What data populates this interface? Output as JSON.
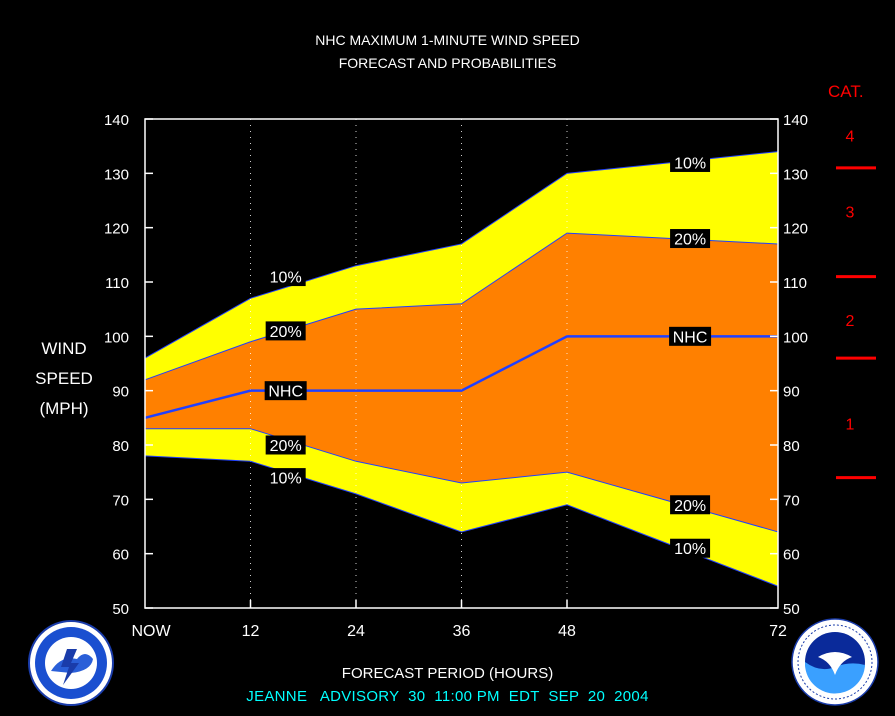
{
  "title_line1": "NHC MAXIMUM 1-MINUTE WIND SPEED",
  "title_line2": "FORECAST AND PROBABILITIES",
  "category_title": "CAT.",
  "ylabel_lines": [
    "WIND",
    "SPEED",
    "(MPH)"
  ],
  "xlabel": "FORECAST PERIOD (HOURS)",
  "footer": "JEANNE   ADVISORY  30  11:00 PM  EDT  SEP  20  2004",
  "logos": {
    "left": "nws-logo-icon",
    "right": "noaa-logo-icon"
  },
  "colors": {
    "outer_band": "#ffff00",
    "inner_band": "#ff8000",
    "nhc_line": "#2040ff",
    "category": "#ff0000",
    "footer": "#00ffff"
  },
  "chart_data": {
    "type": "area",
    "xlabel": "FORECAST PERIOD (HOURS)",
    "ylabel": "WIND SPEED (MPH)",
    "xlim": [
      0,
      72
    ],
    "ylim": [
      50,
      140
    ],
    "x_ticks": [
      0,
      12,
      24,
      36,
      48,
      72
    ],
    "x_tick_labels": [
      "NOW",
      "12",
      "24",
      "36",
      "48",
      "72"
    ],
    "y_ticks": [
      50,
      60,
      70,
      80,
      90,
      100,
      110,
      120,
      130,
      140
    ],
    "vertical_grid_hours": [
      12,
      24,
      36,
      48,
      72
    ],
    "x": [
      0,
      12,
      24,
      36,
      48,
      72
    ],
    "series": [
      {
        "name": "10%",
        "role": "upper",
        "values": [
          96,
          107,
          113,
          117,
          130,
          134
        ]
      },
      {
        "name": "20%",
        "role": "upper",
        "values": [
          92,
          99,
          105,
          106,
          119,
          117
        ]
      },
      {
        "name": "NHC",
        "role": "forecast",
        "values": [
          85,
          90,
          90,
          90,
          100,
          100
        ]
      },
      {
        "name": "20%",
        "role": "lower",
        "values": [
          83,
          83,
          77,
          73,
          75,
          64
        ]
      },
      {
        "name": "10%",
        "role": "lower",
        "values": [
          78,
          77,
          71,
          64,
          69,
          54
        ]
      }
    ],
    "annotations": [
      {
        "text": "10%",
        "x": 16,
        "y": 111
      },
      {
        "text": "20%",
        "x": 16,
        "y": 101
      },
      {
        "text": "NHC",
        "x": 16,
        "y": 90
      },
      {
        "text": "20%",
        "x": 16,
        "y": 80
      },
      {
        "text": "10%",
        "x": 16,
        "y": 74
      },
      {
        "text": "10%",
        "x": 62,
        "y": 132
      },
      {
        "text": "20%",
        "x": 62,
        "y": 118
      },
      {
        "text": "NHC",
        "x": 62,
        "y": 100
      },
      {
        "text": "20%",
        "x": 62,
        "y": 69
      },
      {
        "text": "10%",
        "x": 62,
        "y": 61
      }
    ],
    "categories": [
      {
        "label": "1",
        "y": 84
      },
      {
        "label": "2",
        "y": 103
      },
      {
        "label": "3",
        "y": 123
      },
      {
        "label": "4",
        "y": 137
      }
    ],
    "category_boundaries": [
      74,
      96,
      111,
      131
    ]
  }
}
